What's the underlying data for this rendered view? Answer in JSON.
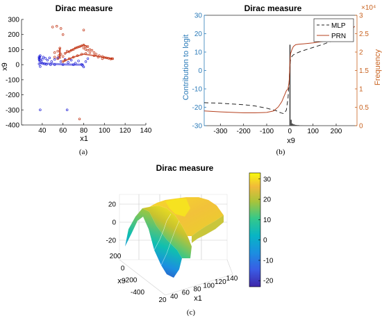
{
  "figure": {
    "caption_a": "(a)",
    "caption_b": "(b)",
    "caption_c": "(c)"
  },
  "chart_data": [
    {
      "id": "a",
      "type": "scatter",
      "title": "Dirac measure",
      "xlabel": "x1",
      "ylabel": "x9",
      "xlim": [
        20,
        140
      ],
      "ylim": [
        -400,
        300
      ],
      "xticks": [
        40,
        60,
        80,
        100,
        120,
        140
      ],
      "yticks": [
        -400,
        -300,
        -200,
        -100,
        0,
        100,
        200,
        300
      ],
      "grid": false,
      "series": [
        {
          "color": "#1f1fd6",
          "points": [
            [
              37,
              52
            ],
            [
              37,
              35
            ],
            [
              38,
              28
            ],
            [
              39,
              18
            ],
            [
              40,
              10
            ],
            [
              42,
              5
            ],
            [
              44,
              2
            ],
            [
              48,
              0
            ],
            [
              52,
              0
            ],
            [
              60,
              0
            ],
            [
              70,
              0
            ],
            [
              78,
              2
            ],
            [
              38,
              -300
            ],
            [
              37,
              5
            ],
            [
              37,
              45
            ],
            [
              38,
              60
            ],
            [
              38,
              -12
            ],
            [
              40,
              35
            ],
            [
              41,
              50
            ],
            [
              43,
              42
            ],
            [
              45,
              30
            ],
            [
              47,
              45
            ],
            [
              49,
              20
            ],
            [
              52,
              35
            ],
            [
              55,
              45
            ],
            [
              58,
              20
            ],
            [
              62,
              35
            ],
            [
              65,
              15
            ],
            [
              68,
              30
            ],
            [
              72,
              10
            ],
            [
              75,
              25
            ],
            [
              79,
              -5
            ],
            [
              64,
              -300
            ],
            [
              80,
              -15
            ],
            [
              82,
              20
            ],
            [
              84,
              40
            ]
          ]
        },
        {
          "color": "#c0300f",
          "points": [
            [
              50,
              250
            ],
            [
              54,
              255
            ],
            [
              60,
              200
            ],
            [
              58,
              240
            ],
            [
              80,
              230
            ],
            [
              52,
              50
            ],
            [
              52,
              80
            ],
            [
              55,
              90
            ],
            [
              55,
              40
            ],
            [
              56,
              60
            ],
            [
              57,
              110
            ],
            [
              58,
              70
            ],
            [
              60,
              55
            ],
            [
              62,
              75
            ],
            [
              64,
              90
            ],
            [
              66,
              85
            ],
            [
              68,
              95
            ],
            [
              70,
              100
            ],
            [
              72,
              110
            ],
            [
              74,
              115
            ],
            [
              76,
              120
            ],
            [
              78,
              125
            ],
            [
              80,
              130
            ],
            [
              82,
              120
            ],
            [
              84,
              120
            ],
            [
              80,
              110
            ],
            [
              82,
              100
            ],
            [
              84,
              95
            ],
            [
              86,
              100
            ],
            [
              88,
              95
            ],
            [
              90,
              80
            ],
            [
              92,
              70
            ],
            [
              95,
              60
            ],
            [
              98,
              55
            ],
            [
              100,
              48
            ],
            [
              102,
              45
            ],
            [
              104,
              42
            ],
            [
              106,
              38
            ],
            [
              108,
              40
            ],
            [
              60,
              20
            ],
            [
              62,
              30
            ],
            [
              66,
              40
            ],
            [
              70,
              50
            ],
            [
              74,
              60
            ],
            [
              78,
              70
            ],
            [
              82,
              75
            ],
            [
              86,
              80
            ],
            [
              90,
              60
            ],
            [
              94,
              50
            ],
            [
              98,
              40
            ],
            [
              76,
              -360
            ],
            [
              107,
              40
            ]
          ]
        }
      ]
    },
    {
      "id": "b",
      "type": "line",
      "title": "Dirac measure",
      "xlabel": "x9",
      "ylabel": "Contribution to logit",
      "ylabel_right": "Frequency",
      "right_exponent": "×10⁴",
      "xlim": [
        -370,
        290
      ],
      "ylim": [
        -30,
        30
      ],
      "ylim_right": [
        0,
        3
      ],
      "xticks": [
        -300,
        -200,
        -100,
        0,
        100,
        200
      ],
      "yticks": [
        -30,
        -20,
        -10,
        0,
        10,
        20,
        30
      ],
      "yticks_right": [
        0,
        0.5,
        1,
        1.5,
        2,
        2.5,
        3
      ],
      "yticks_right_labels": [
        "0",
        "0.5",
        "1",
        "1.5",
        "2",
        "2.5",
        "3"
      ],
      "legend": "top-right",
      "series": [
        {
          "name": "MLP",
          "color": "#222222",
          "dash": "6,4",
          "x": [
            -370,
            -300,
            -200,
            -150,
            -100,
            -60,
            -40,
            -25,
            -15,
            -8,
            -3,
            0,
            3,
            8,
            15,
            30,
            50,
            100,
            150,
            200,
            250,
            280
          ],
          "y": [
            -17.5,
            -17.8,
            -18.6,
            -19.3,
            -20.5,
            -21.8,
            -23,
            -23.5,
            -21.5,
            -15,
            -6,
            2,
            6,
            7.5,
            8.5,
            9.5,
            10.5,
            12.5,
            14.5,
            17,
            19.5,
            21
          ]
        },
        {
          "name": "PRN",
          "color": "#b5401e",
          "dash": "",
          "x": [
            -370,
            -300,
            -200,
            -150,
            -100,
            -70,
            -50,
            -35,
            -25,
            -15,
            -8,
            -3,
            0,
            3,
            8,
            15,
            25,
            40,
            60,
            100,
            150,
            200,
            250,
            280
          ],
          "y": [
            -22,
            -22.5,
            -23,
            -23,
            -22.8,
            -22,
            -19.8,
            -17,
            -14,
            -11,
            -10,
            -6,
            3,
            9,
            11,
            13,
            14,
            14.3,
            14.5,
            15,
            16,
            17,
            20,
            24
          ]
        }
      ],
      "histogram": {
        "color": "#4a4a4a",
        "bins": [
          [
            -2,
            3,
            2.2
          ],
          [
            3,
            8,
            0.16
          ],
          [
            8,
            13,
            0.06
          ],
          [
            13,
            18,
            0.04
          ],
          [
            18,
            23,
            0.03
          ],
          [
            23,
            30,
            0.02
          ],
          [
            30,
            40,
            0.015
          ],
          [
            40,
            55,
            0.01
          ],
          [
            55,
            70,
            0.008
          ],
          [
            70,
            85,
            0.007
          ],
          [
            85,
            100,
            0.006
          ],
          [
            100,
            115,
            0.005
          ],
          [
            115,
            125,
            0.004
          ]
        ]
      }
    },
    {
      "id": "c",
      "type": "surface",
      "title": "Dirac measure",
      "xlabel": "x1",
      "ylabel": "x9",
      "xticks": [
        20,
        40,
        60,
        80,
        100,
        120,
        140
      ],
      "yticks": [
        -400,
        -200,
        0,
        200
      ],
      "zticks": [
        -20,
        0,
        20
      ],
      "colorbar_ticks": [
        -20,
        -10,
        0,
        10,
        20,
        30
      ],
      "colorbar_range": [
        -23,
        33
      ],
      "colormap": "parula"
    }
  ]
}
